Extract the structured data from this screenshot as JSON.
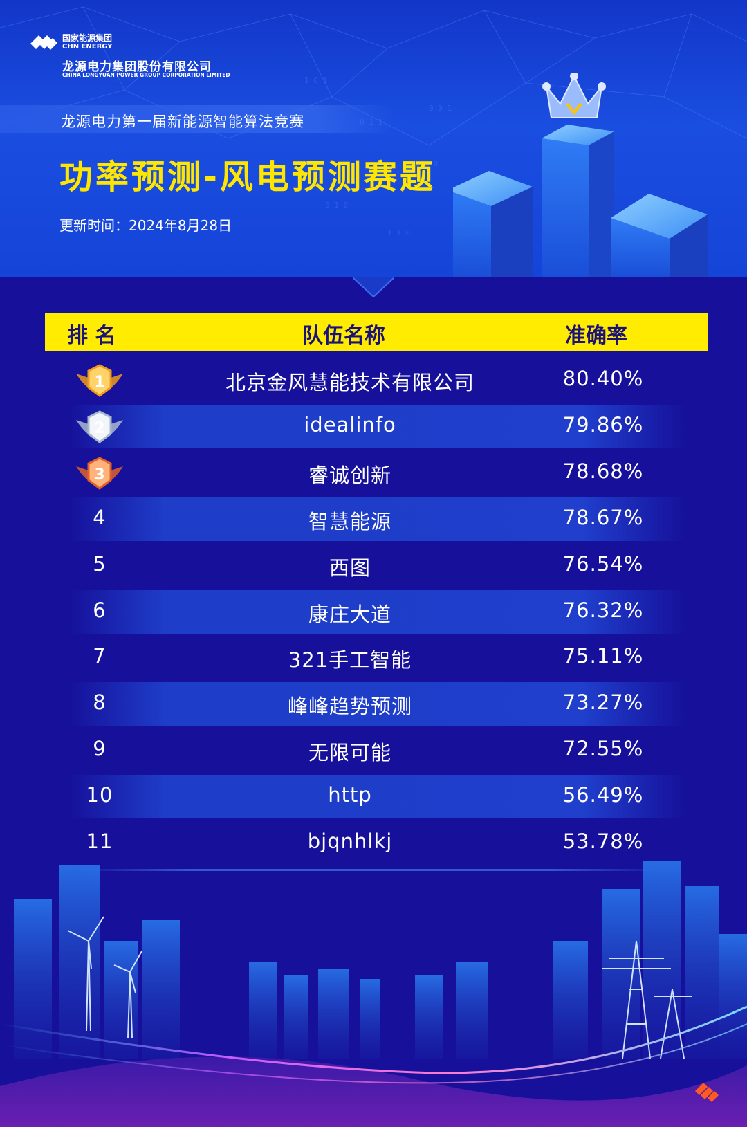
{
  "logo": {
    "group_cn": "国家能源集团",
    "group_en": "CHN ENERGY",
    "company_cn": "龙源电力集团股份有限公司",
    "company_en": "CHINA LONGYUAN POWER GROUP CORPORATION LIMITED"
  },
  "header": {
    "subtitle": "龙源电力第一届新能源智能算法竞赛",
    "title": "功率预测-风电预测赛题",
    "update": "更新时间：2024年8月28日"
  },
  "table": {
    "columns": [
      "排  名",
      "队伍名称",
      "准确率"
    ],
    "rows": [
      {
        "rank": "1",
        "team": "北京金风慧能技术有限公司",
        "accuracy": "80.40%",
        "medal": "gold"
      },
      {
        "rank": "2",
        "team": "idealinfo",
        "accuracy": "79.86%",
        "medal": "silver"
      },
      {
        "rank": "3",
        "team": "睿诚创新",
        "accuracy": "78.68%",
        "medal": "bronze"
      },
      {
        "rank": "4",
        "team": "智慧能源",
        "accuracy": "78.67%"
      },
      {
        "rank": "5",
        "team": "西图",
        "accuracy": "76.54%"
      },
      {
        "rank": "6",
        "team": "康庄大道",
        "accuracy": "76.32%"
      },
      {
        "rank": "7",
        "team": "321手工智能",
        "accuracy": "75.11%"
      },
      {
        "rank": "8",
        "team": "峰峰趋势预测",
        "accuracy": "73.27%"
      },
      {
        "rank": "9",
        "team": "无限可能",
        "accuracy": "72.55%"
      },
      {
        "rank": "10",
        "team": "http",
        "accuracy": "56.49%"
      },
      {
        "rank": "11",
        "team": "bjqnhlkj",
        "accuracy": "53.78%"
      }
    ]
  },
  "colors": {
    "background": "#16109a",
    "header_bar": "#ffec00",
    "title": "#ffe600",
    "gold": "#f5a623",
    "silver": "#c8d2e0",
    "bronze": "#f07a3a"
  }
}
